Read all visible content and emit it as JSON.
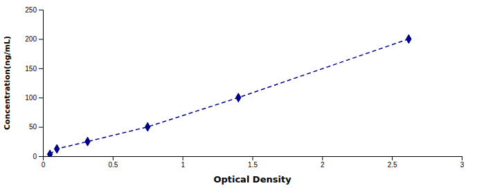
{
  "chart_data": {
    "type": "line",
    "x": [
      0.05,
      0.1,
      0.32,
      0.75,
      1.4,
      2.62
    ],
    "values": [
      3.125,
      12.5,
      25,
      50,
      100,
      200
    ],
    "color": "#00008B",
    "line_style": "dashed",
    "marker": "diamond",
    "xlabel": "Optical Density",
    "ylabel": "Concentration(ng/mL)",
    "xlim": [
      0,
      3
    ],
    "ylim": [
      0,
      250
    ],
    "xticks": [
      0,
      0.5,
      1,
      1.5,
      2,
      2.5,
      3
    ],
    "yticks": [
      0,
      50,
      100,
      150,
      200,
      250
    ],
    "grid": false
  }
}
